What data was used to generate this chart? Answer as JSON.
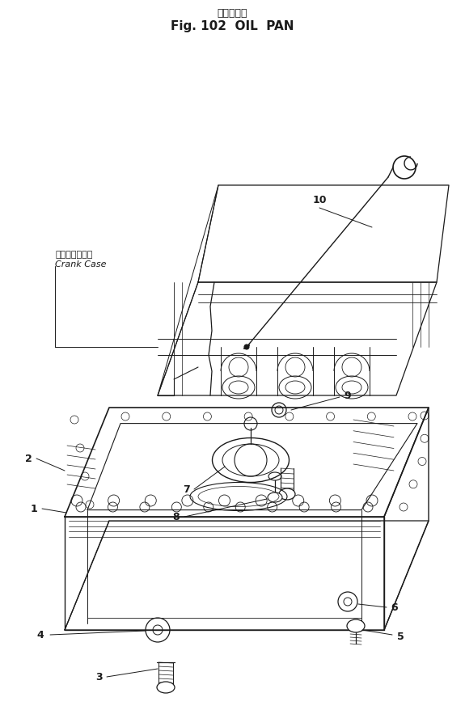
{
  "title_japanese": "オイルパン",
  "title_english": "Fig. 102  OIL  PAN",
  "background_color": "#ffffff",
  "line_color": "#1a1a1a",
  "figsize": [
    5.75,
    8.79
  ],
  "dpi": 100,
  "crank_label_jp": "クランクケース",
  "crank_label_en": "Crank Case"
}
